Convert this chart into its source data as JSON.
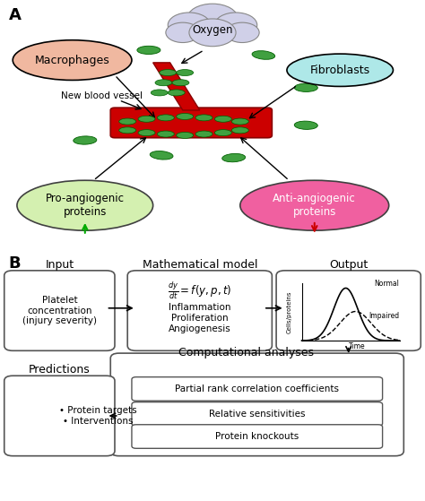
{
  "fig_width": 4.74,
  "fig_height": 5.59,
  "bg_color": "#ffffff",
  "panel_a": {
    "label": "A",
    "oxygen_text": "Oxygen",
    "oxygen_color": "#d0d0e8",
    "macrophages_text": "Macrophages",
    "macrophages_color": "#f0b8a0",
    "fibroblasts_text": "Fibroblasts",
    "fibroblasts_color": "#aee8e8",
    "pro_text": "Pro-angiogenic\nproteins",
    "pro_color": "#d4f0b0",
    "anti_text": "Anti-angiogenic\nproteins",
    "anti_color": "#f060a0",
    "vessel_label": "New blood vessel",
    "vessel_color": "#cc0000",
    "cell_color": "#40a040"
  },
  "panel_b": {
    "label": "B",
    "input_title": "Input",
    "input_text": "Platelet\nconcentration\n(injury severity)",
    "math_title": "Mathematical model",
    "math_eq": "$\\frac{dy}{dt} = f(y,p,t)$",
    "math_items": "Inflammation\nProliferation\nAngiogenesis",
    "output_title": "Output",
    "output_normal": "Normal",
    "output_impaired": "Impaired",
    "output_xlabel": "Time",
    "output_ylabel": "Cells/proteins",
    "comp_title": "Computational analyses",
    "comp_items": [
      "Partial rank correlation coefficients",
      "Relative sensitivities",
      "Protein knockouts"
    ],
    "pred_title": "Predictions",
    "pred_items": "• Protein targets\n• Interventions"
  }
}
